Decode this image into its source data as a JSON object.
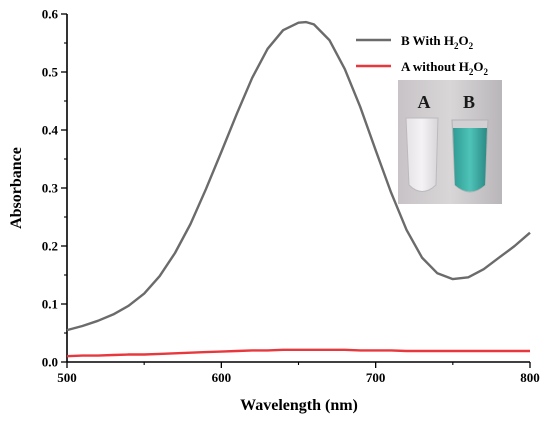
{
  "chart_data": {
    "type": "line",
    "xlabel": "Wavelength (nm)",
    "ylabel": "Absorbance",
    "xlim": [
      500,
      800
    ],
    "ylim": [
      0,
      0.6
    ],
    "x_ticks": [
      "500",
      "600",
      "700",
      "800"
    ],
    "y_ticks": [
      "0.0",
      "0.1",
      "0.2",
      "0.3",
      "0.4",
      "0.5",
      "0.6"
    ],
    "legend_placement": "top-right",
    "grid": false,
    "x": [
      500,
      510,
      520,
      530,
      540,
      550,
      560,
      570,
      580,
      590,
      600,
      610,
      620,
      630,
      640,
      650,
      655,
      660,
      670,
      680,
      690,
      700,
      710,
      720,
      730,
      740,
      750,
      760,
      770,
      780,
      790,
      800
    ],
    "series": [
      {
        "name": "B With H₂O₂",
        "color": "#6b6b6b",
        "values": [
          0.055,
          0.062,
          0.071,
          0.082,
          0.097,
          0.118,
          0.148,
          0.188,
          0.238,
          0.298,
          0.362,
          0.428,
          0.49,
          0.54,
          0.572,
          0.585,
          0.586,
          0.582,
          0.555,
          0.505,
          0.44,
          0.365,
          0.292,
          0.228,
          0.18,
          0.153,
          0.143,
          0.146,
          0.16,
          0.18,
          0.2,
          0.223
        ]
      },
      {
        "name": "A without H₂O₂",
        "color": "#e8383d",
        "values": [
          0.01,
          0.011,
          0.011,
          0.012,
          0.013,
          0.013,
          0.014,
          0.015,
          0.016,
          0.017,
          0.018,
          0.019,
          0.02,
          0.02,
          0.021,
          0.021,
          0.021,
          0.021,
          0.021,
          0.021,
          0.02,
          0.02,
          0.02,
          0.019,
          0.019,
          0.019,
          0.019,
          0.019,
          0.019,
          0.019,
          0.019,
          0.019
        ]
      }
    ],
    "legend": [
      {
        "prefix": "B With H",
        "sub1": "2",
        "mid": "O",
        "sub2": "2"
      },
      {
        "prefix": "A without H",
        "sub1": "2",
        "mid": "O",
        "sub2": "2"
      }
    ],
    "inset_labels": [
      "A",
      "B"
    ]
  }
}
